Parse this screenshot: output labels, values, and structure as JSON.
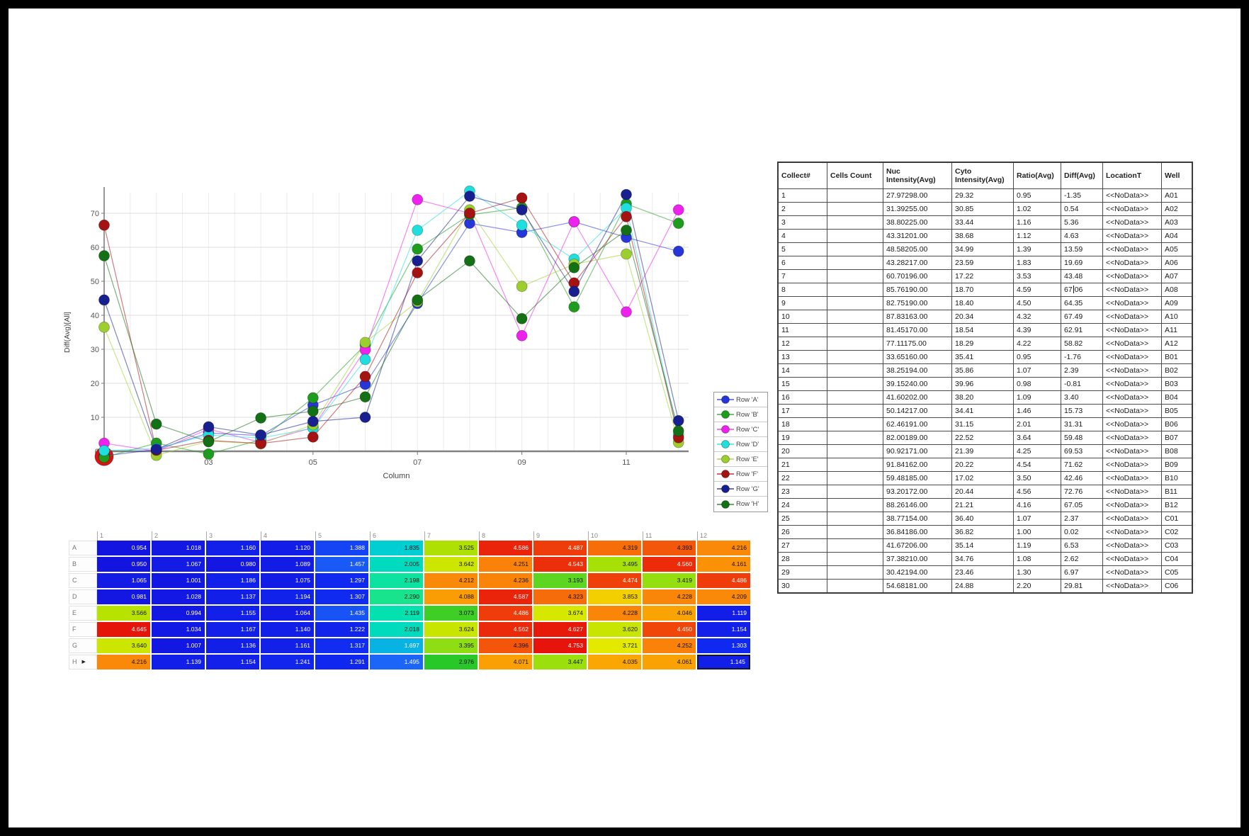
{
  "chart_data": {
    "type": "line",
    "title": "",
    "xlabel": "Column",
    "ylabel": "Diff(Avg)[All]",
    "x": [
      1,
      2,
      3,
      4,
      5,
      6,
      7,
      8,
      9,
      10,
      11,
      12
    ],
    "x_tick_labels": [
      "03",
      "05",
      "07",
      "09",
      "11"
    ],
    "x_tick_positions": [
      3,
      5,
      7,
      9,
      11
    ],
    "yticks": [
      0,
      10,
      20,
      30,
      40,
      50,
      60,
      70
    ],
    "ylim": [
      -5,
      78
    ],
    "grid": true,
    "legend_position": "right",
    "series": [
      {
        "name": "Row 'A'",
        "color": "#2636d9",
        "values": [
          -1.35,
          0.54,
          5.36,
          4.63,
          13.59,
          19.69,
          43.48,
          67.06,
          64.35,
          67.49,
          62.91,
          58.82
        ]
      },
      {
        "name": "Row 'B'",
        "color": "#1d9c1d",
        "values": [
          -1.76,
          2.39,
          -0.81,
          3.4,
          15.73,
          31.31,
          59.48,
          69.53,
          71.62,
          42.46,
          72.76,
          67.05
        ]
      },
      {
        "name": "Row 'C'",
        "color": "#ee22ee",
        "values": [
          2.37,
          0.02,
          6.53,
          2.62,
          6.97,
          29.81,
          74.0,
          70.0,
          34.0,
          67.5,
          41.0,
          71.0
        ]
      },
      {
        "name": "Row 'D'",
        "color": "#1edede",
        "values": [
          0.2,
          0.8,
          4.8,
          3.9,
          6.8,
          27.0,
          65.0,
          76.5,
          66.5,
          56.5,
          71.5,
          4.8
        ]
      },
      {
        "name": "Row 'E'",
        "color": "#9ccf2e",
        "values": [
          36.5,
          -1.2,
          3.0,
          2.2,
          7.8,
          32.0,
          44.0,
          71.0,
          48.5,
          55.0,
          58.0,
          2.6
        ]
      },
      {
        "name": "Row 'F'",
        "color": "#a51212",
        "values": [
          66.5,
          0.3,
          3.2,
          2.3,
          4.2,
          22.0,
          52.5,
          70.0,
          74.5,
          49.5,
          69.0,
          4.0
        ]
      },
      {
        "name": "Row 'G'",
        "color": "#18208f",
        "values": [
          44.5,
          0.6,
          7.2,
          4.8,
          8.8,
          10.0,
          56.0,
          75.0,
          71.0,
          47.0,
          75.5,
          9.0
        ]
      },
      {
        "name": "Row 'H'",
        "color": "#147014",
        "values": [
          57.5,
          8.0,
          2.8,
          9.8,
          11.8,
          16.0,
          44.5,
          56.0,
          39.0,
          54.0,
          65.0,
          6.0
        ]
      }
    ],
    "outlier_point": {
      "x": 1,
      "value": -1.5,
      "color": "#dd1111",
      "radius": 13
    }
  },
  "legend": {
    "items": [
      {
        "label": "Row 'A'",
        "color": "#2636d9"
      },
      {
        "label": "Row 'B'",
        "color": "#1d9c1d"
      },
      {
        "label": "Row 'C'",
        "color": "#ee22ee"
      },
      {
        "label": "Row 'D'",
        "color": "#1edede"
      },
      {
        "label": "Row 'E'",
        "color": "#9ccf2e"
      },
      {
        "label": "Row 'F'",
        "color": "#a51212"
      },
      {
        "label": "Row 'G'",
        "color": "#18208f"
      },
      {
        "label": "Row 'H'",
        "color": "#147014"
      }
    ]
  },
  "heatmap": {
    "columns": [
      "1",
      "2",
      "3",
      "4",
      "5",
      "6",
      "7",
      "8",
      "9",
      "10",
      "11",
      "12"
    ],
    "rows": [
      {
        "label": "A",
        "values": [
          0.954,
          1.018,
          1.16,
          1.12,
          1.388,
          1.835,
          3.525,
          4.586,
          4.487,
          4.319,
          4.393,
          4.216
        ]
      },
      {
        "label": "B",
        "values": [
          0.95,
          1.067,
          0.98,
          1.089,
          1.457,
          2.005,
          3.642,
          4.251,
          4.543,
          3.495,
          4.56,
          4.161
        ]
      },
      {
        "label": "C",
        "values": [
          1.065,
          1.001,
          1.186,
          1.075,
          1.297,
          2.198,
          4.212,
          4.236,
          3.193,
          4.474,
          3.419,
          4.486
        ]
      },
      {
        "label": "D",
        "values": [
          0.981,
          1.028,
          1.137,
          1.194,
          1.307,
          2.29,
          4.088,
          4.587,
          4.323,
          3.853,
          4.228,
          4.209
        ]
      },
      {
        "label": "E",
        "values": [
          3.566,
          0.994,
          1.155,
          1.064,
          1.435,
          2.119,
          3.073,
          4.486,
          3.674,
          4.228,
          4.046,
          1.119
        ]
      },
      {
        "label": "F",
        "values": [
          4.645,
          1.034,
          1.167,
          1.14,
          1.222,
          2.018,
          3.624,
          4.562,
          4.627,
          3.62,
          4.45,
          1.154
        ]
      },
      {
        "label": "G",
        "values": [
          3.64,
          1.007,
          1.136,
          1.161,
          1.317,
          1.697,
          3.395,
          4.396,
          4.753,
          3.721,
          4.252,
          1.303
        ]
      },
      {
        "label": "H",
        "values": [
          4.216,
          1.139,
          1.154,
          1.241,
          1.291,
          1.495,
          2.976,
          4.071,
          3.447,
          4.035,
          4.061,
          1.145
        ]
      }
    ],
    "current_row": "H",
    "selected_cell": {
      "row": "H",
      "column": "12"
    }
  },
  "table": {
    "headers": [
      "Collect#",
      "Cells Count",
      "Nuc Intensity(Avg)",
      "Cyto Intensity(Avg)",
      "Ratio(Avg)",
      "Diff(Avg)",
      "LocationT",
      "Well"
    ],
    "editing": {
      "row_index": 7,
      "col_index": 5
    },
    "rows": [
      [
        "1",
        "",
        "27.97298.00",
        "29.32",
        "0.95",
        "-1.35",
        "<<NoData>>",
        "A01"
      ],
      [
        "2",
        "",
        "31.39255.00",
        "30.85",
        "1.02",
        "0.54",
        "<<NoData>>",
        "A02"
      ],
      [
        "3",
        "",
        "38.80225.00",
        "33.44",
        "1.16",
        "5.36",
        "<<NoData>>",
        "A03"
      ],
      [
        "4",
        "",
        "43.31201.00",
        "38.68",
        "1.12",
        "4.63",
        "<<NoData>>",
        "A04"
      ],
      [
        "5",
        "",
        "48.58205.00",
        "34.99",
        "1.39",
        "13.59",
        "<<NoData>>",
        "A05"
      ],
      [
        "6",
        "",
        "43.28217.00",
        "23.59",
        "1.83",
        "19.69",
        "<<NoData>>",
        "A06"
      ],
      [
        "7",
        "",
        "60.70196.00",
        "17.22",
        "3.53",
        "43.48",
        "<<NoData>>",
        "A07"
      ],
      [
        "8",
        "",
        "85.76190.00",
        "18.70",
        "4.59",
        "67.06",
        "<<NoData>>",
        "A08"
      ],
      [
        "9",
        "",
        "82.75190.00",
        "18.40",
        "4.50",
        "64.35",
        "<<NoData>>",
        "A09"
      ],
      [
        "10",
        "",
        "87.83163.00",
        "20.34",
        "4.32",
        "67.49",
        "<<NoData>>",
        "A10"
      ],
      [
        "11",
        "",
        "81.45170.00",
        "18.54",
        "4.39",
        "62.91",
        "<<NoData>>",
        "A11"
      ],
      [
        "12",
        "",
        "77.11175.00",
        "18.29",
        "4.22",
        "58.82",
        "<<NoData>>",
        "A12"
      ],
      [
        "13",
        "",
        "33.65160.00",
        "35.41",
        "0.95",
        "-1.76",
        "<<NoData>>",
        "B01"
      ],
      [
        "14",
        "",
        "38.25194.00",
        "35.86",
        "1.07",
        "2.39",
        "<<NoData>>",
        "B02"
      ],
      [
        "15",
        "",
        "39.15240.00",
        "39.96",
        "0.98",
        "-0.81",
        "<<NoData>>",
        "B03"
      ],
      [
        "16",
        "",
        "41.60202.00",
        "38.20",
        "1.09",
        "3.40",
        "<<NoData>>",
        "B04"
      ],
      [
        "17",
        "",
        "50.14217.00",
        "34.41",
        "1.46",
        "15.73",
        "<<NoData>>",
        "B05"
      ],
      [
        "18",
        "",
        "62.46191.00",
        "31.15",
        "2.01",
        "31.31",
        "<<NoData>>",
        "B06"
      ],
      [
        "19",
        "",
        "82.00189.00",
        "22.52",
        "3.64",
        "59.48",
        "<<NoData>>",
        "B07"
      ],
      [
        "20",
        "",
        "90.92171.00",
        "21.39",
        "4.25",
        "69.53",
        "<<NoData>>",
        "B08"
      ],
      [
        "21",
        "",
        "91.84162.00",
        "20.22",
        "4.54",
        "71.62",
        "<<NoData>>",
        "B09"
      ],
      [
        "22",
        "",
        "59.48185.00",
        "17.02",
        "3.50",
        "42.46",
        "<<NoData>>",
        "B10"
      ],
      [
        "23",
        "",
        "93.20172.00",
        "20.44",
        "4.56",
        "72.76",
        "<<NoData>>",
        "B11"
      ],
      [
        "24",
        "",
        "88.26146.00",
        "21.21",
        "4.16",
        "67.05",
        "<<NoData>>",
        "B12"
      ],
      [
        "25",
        "",
        "38.77154.00",
        "36.40",
        "1.07",
        "2.37",
        "<<NoData>>",
        "C01"
      ],
      [
        "26",
        "",
        "36.84186.00",
        "36.82",
        "1.00",
        "0.02",
        "<<NoData>>",
        "C02"
      ],
      [
        "27",
        "",
        "41.67206.00",
        "35.14",
        "1.19",
        "6.53",
        "<<NoData>>",
        "C03"
      ],
      [
        "28",
        "",
        "37.38210.00",
        "34.76",
        "1.08",
        "2.62",
        "<<NoData>>",
        "C04"
      ],
      [
        "29",
        "",
        "30.42194.00",
        "23.46",
        "1.30",
        "6.97",
        "<<NoData>>",
        "C05"
      ],
      [
        "30",
        "",
        "54.68181.00",
        "24.88",
        "2.20",
        "29.81",
        "<<NoData>>",
        "C06"
      ]
    ]
  }
}
